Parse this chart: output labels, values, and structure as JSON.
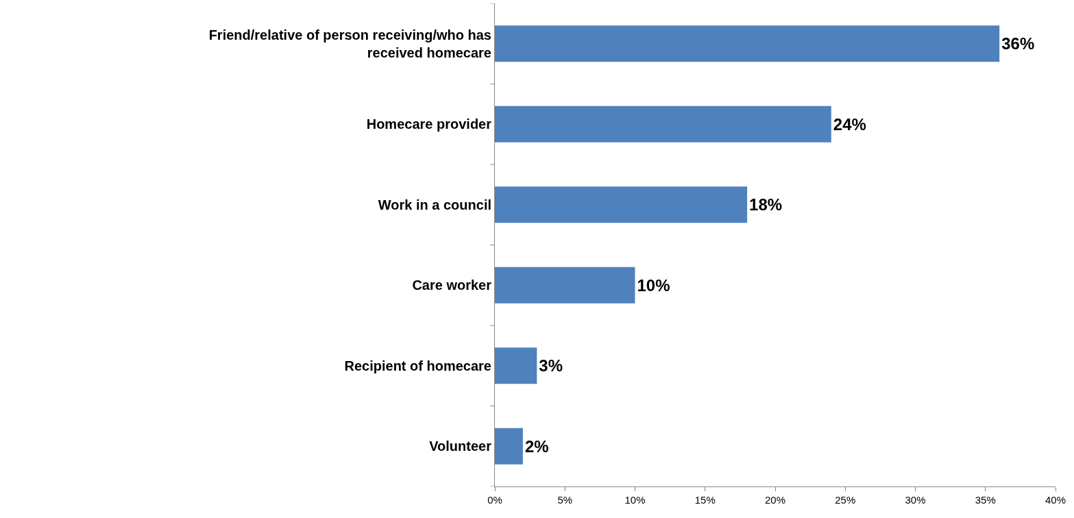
{
  "chart_data": {
    "type": "bar",
    "orientation": "horizontal",
    "categories": [
      "Friend/relative of person receiving/who has received homecare",
      "Homecare provider",
      "Work in a council",
      "Care worker",
      "Recipient of homecare",
      "Volunteer"
    ],
    "values": [
      36,
      24,
      18,
      10,
      3,
      2
    ],
    "value_labels": [
      "36%",
      "24%",
      "18%",
      "10%",
      "3%",
      "2%"
    ],
    "color": "#4f81bd",
    "xlim": [
      0,
      40
    ],
    "xticks": [
      {
        "value": 0,
        "label": "0%"
      },
      {
        "value": 5,
        "label": "5%"
      },
      {
        "value": 10,
        "label": "10%"
      },
      {
        "value": 15,
        "label": "15%"
      },
      {
        "value": 20,
        "label": "20%"
      },
      {
        "value": 25,
        "label": "25%"
      },
      {
        "value": 30,
        "label": "30%"
      },
      {
        "value": 35,
        "label": "35%"
      },
      {
        "value": 40,
        "label": "40%"
      }
    ],
    "grid": false,
    "legend": false
  }
}
